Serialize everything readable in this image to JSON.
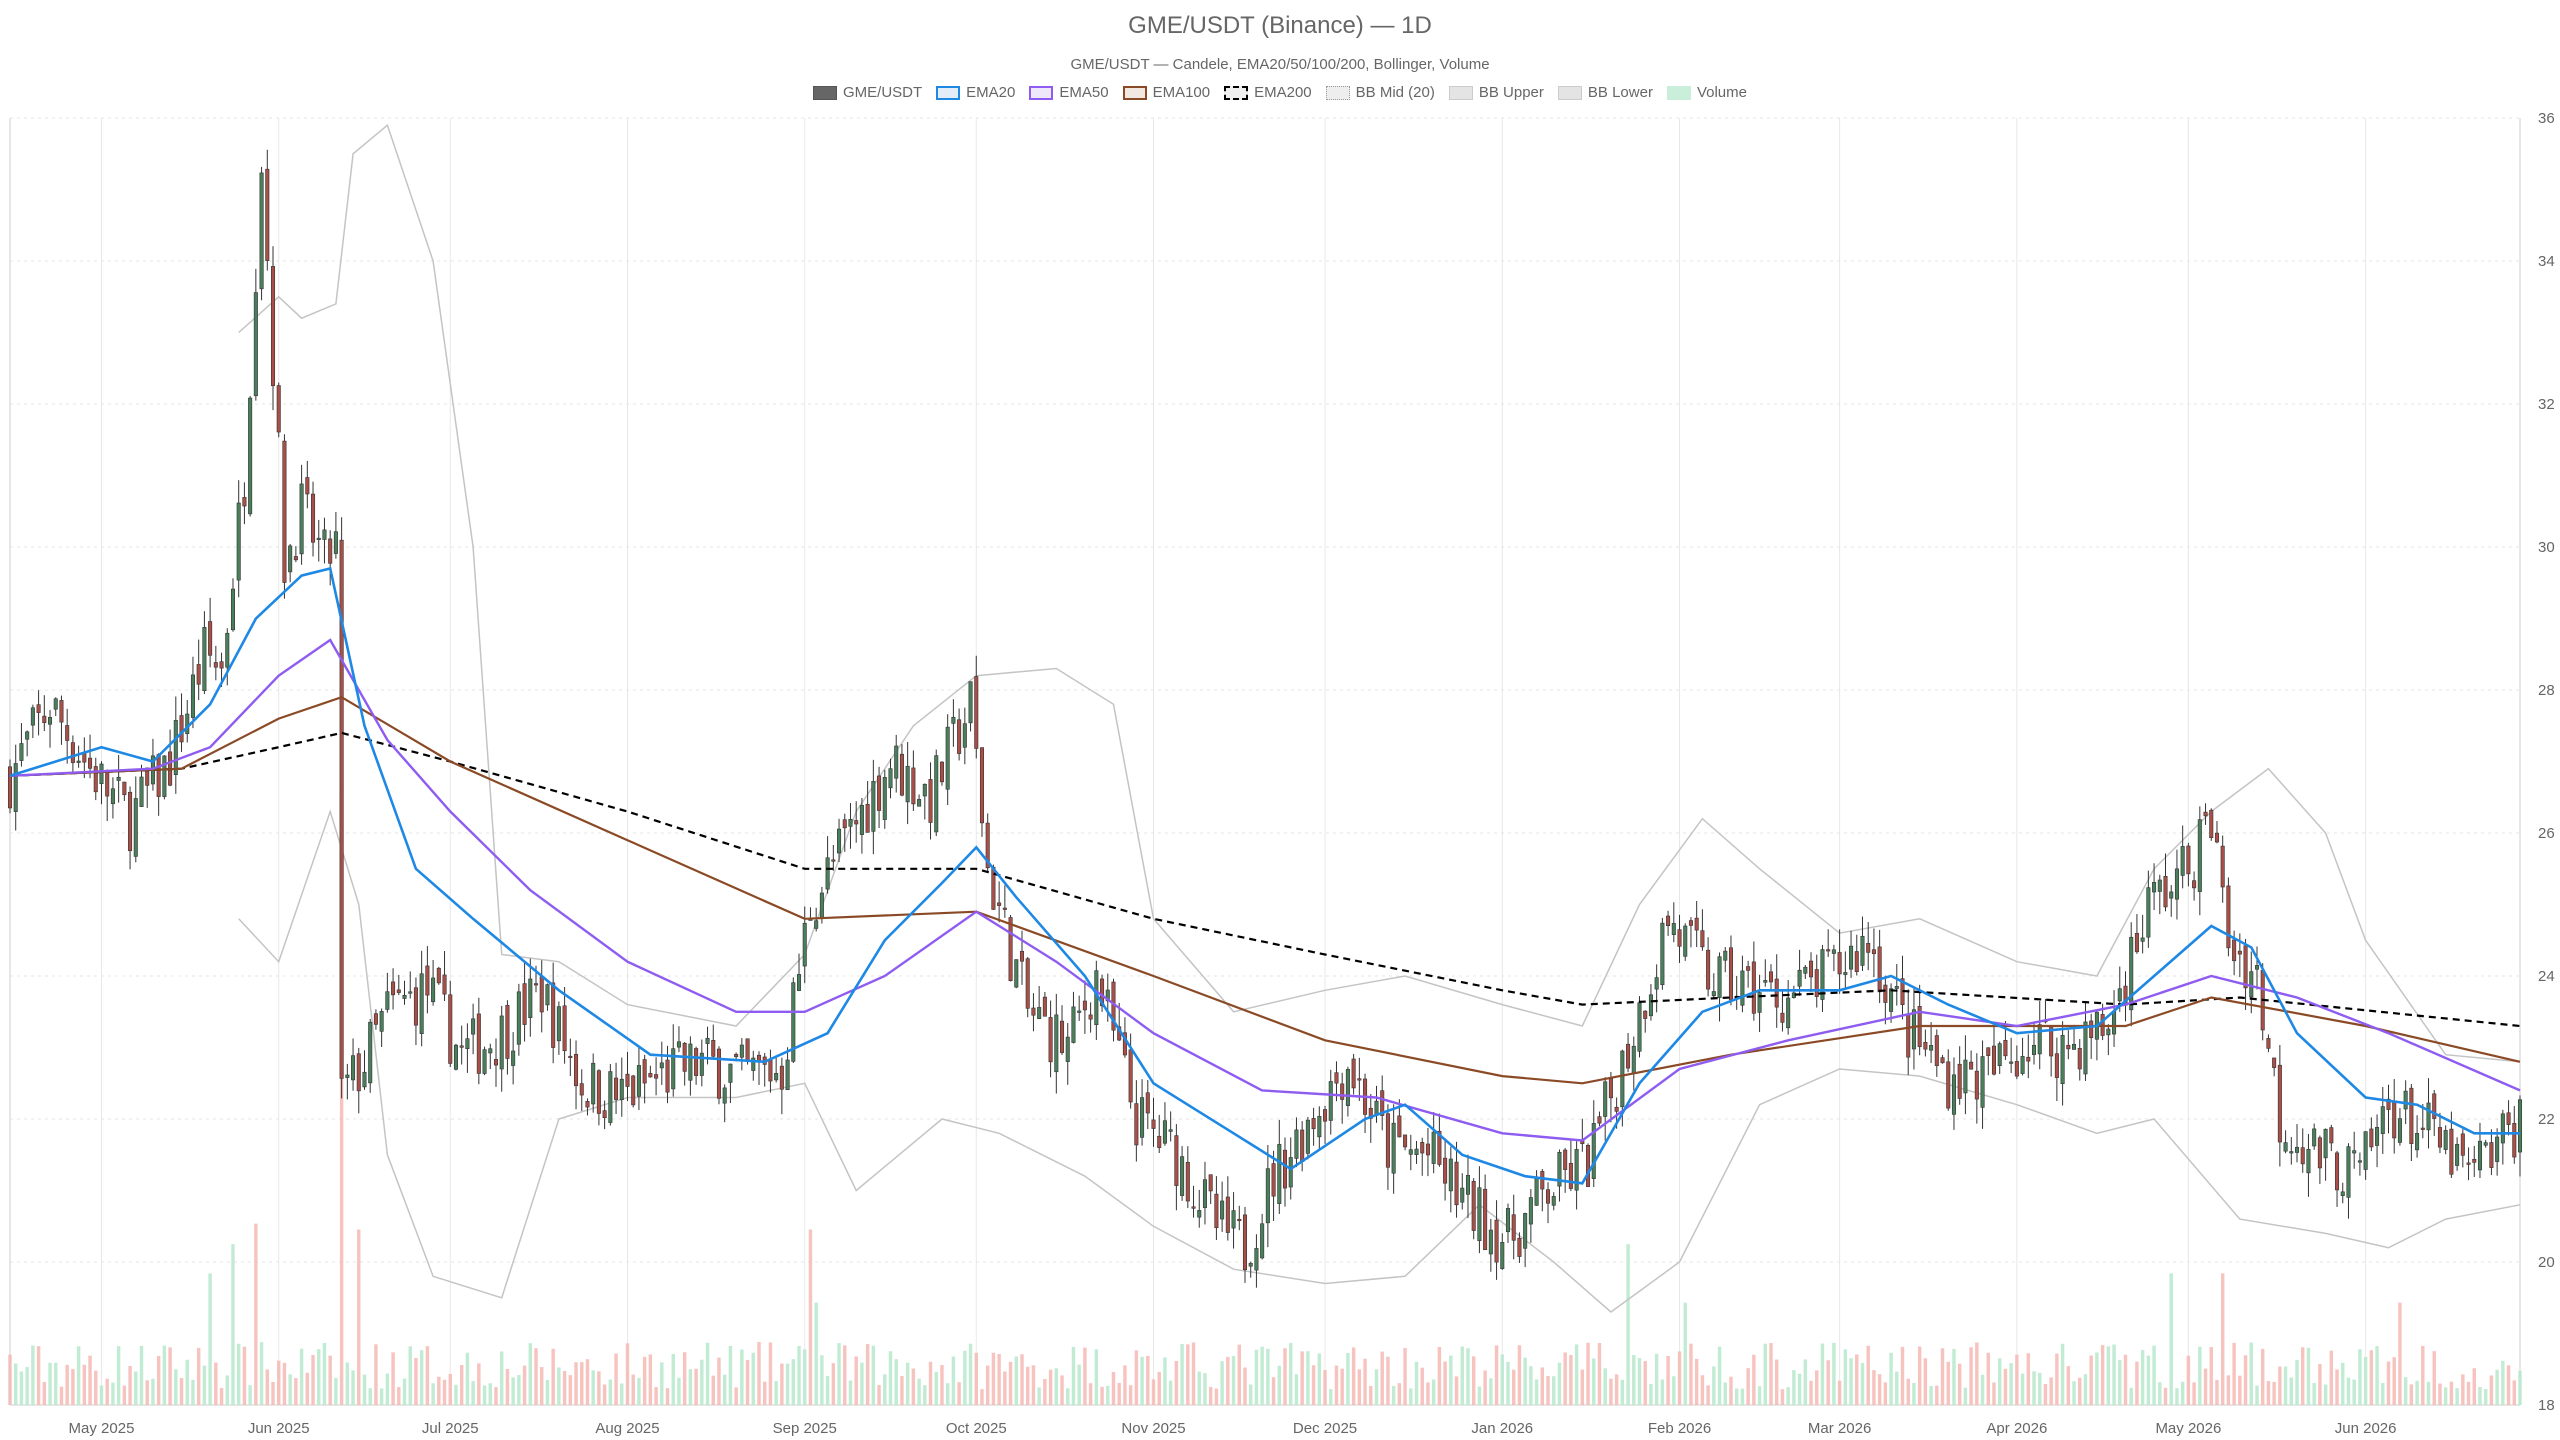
{
  "chart_data": {
    "type": "candlestick",
    "title": "GME/USDT (Binance) — 1D",
    "subtitle": "GME/USDT — Candele, EMA20/50/100/200, Bollinger, Volume",
    "legend": [
      {
        "key": "candles",
        "label": "GME/USDT",
        "color": "#666666",
        "style": "solid"
      },
      {
        "key": "ema20",
        "label": "EMA20",
        "color": "#1e88e5",
        "style": "solid"
      },
      {
        "key": "ema50",
        "label": "EMA50",
        "color": "#8e5cf0",
        "style": "solid"
      },
      {
        "key": "ema100",
        "label": "EMA100",
        "color": "#8b4a26",
        "style": "solid"
      },
      {
        "key": "ema200",
        "label": "EMA200",
        "color": "#000000",
        "style": "dashed"
      },
      {
        "key": "bbmid",
        "label": "BB Mid (20)",
        "color": "#999999",
        "style": "dotted"
      },
      {
        "key": "bbupper",
        "label": "BB Upper",
        "color": "#bbbbbb",
        "style": "solid"
      },
      {
        "key": "bblower",
        "label": "BB Lower",
        "color": "#bbbbbb",
        "style": "solid"
      },
      {
        "key": "volume",
        "label": "Volume",
        "color": "#b7e8cc",
        "style": "solid"
      }
    ],
    "x_ticks": [
      "May 2025",
      "Jun 2025",
      "Jul 2025",
      "Aug 2025",
      "Sep 2025",
      "Oct 2025",
      "Nov 2025",
      "Dec 2025",
      "Jan 2026",
      "Feb 2026",
      "Mar 2026",
      "Apr 2026",
      "May 2026",
      "Jun 2026"
    ],
    "x_range": [
      "2025-04-15",
      "2026-06-28"
    ],
    "y_ticks": [
      18,
      20,
      22,
      24,
      26,
      28,
      30,
      32,
      34,
      36
    ],
    "ylim": [
      18,
      36
    ],
    "colors": {
      "up": "#4a7f5b",
      "down": "#a94f47",
      "vol_up": "#b7e8cc",
      "vol_down": "#f4b8b4",
      "grid": "#e6e6e6"
    },
    "close_path": [
      [
        "2025-04-15",
        26.8
      ],
      [
        "2025-04-22",
        27.8
      ],
      [
        "2025-04-29",
        26.9
      ],
      [
        "2025-05-06",
        26.2
      ],
      [
        "2025-05-13",
        27.0
      ],
      [
        "2025-05-19",
        28.5
      ],
      [
        "2025-05-22",
        28.3
      ],
      [
        "2025-05-26",
        31.0
      ],
      [
        "2025-05-29",
        35.5
      ],
      [
        "2025-06-02",
        29.8
      ],
      [
        "2025-06-05",
        30.5
      ],
      [
        "2025-06-09",
        29.8
      ],
      [
        "2025-06-11",
        30.0
      ],
      [
        "2025-06-12",
        22.3
      ],
      [
        "2025-06-16",
        22.8
      ],
      [
        "2025-06-20",
        23.5
      ],
      [
        "2025-06-27",
        23.8
      ],
      [
        "2025-07-03",
        22.9
      ],
      [
        "2025-07-10",
        23.2
      ],
      [
        "2025-07-17",
        23.8
      ],
      [
        "2025-07-24",
        22.5
      ],
      [
        "2025-07-31",
        22.3
      ],
      [
        "2025-08-07",
        22.6
      ],
      [
        "2025-08-14",
        22.8
      ],
      [
        "2025-08-21",
        22.6
      ],
      [
        "2025-08-28",
        22.7
      ],
      [
        "2025-09-02",
        25.0
      ],
      [
        "2025-09-09",
        26.0
      ],
      [
        "2025-09-16",
        27.0
      ],
      [
        "2025-09-23",
        26.5
      ],
      [
        "2025-09-30",
        27.8
      ],
      [
        "2025-10-03",
        25.5
      ],
      [
        "2025-10-10",
        23.5
      ],
      [
        "2025-10-17",
        23.0
      ],
      [
        "2025-10-22",
        24.0
      ],
      [
        "2025-10-29",
        22.0
      ],
      [
        "2025-11-05",
        21.5
      ],
      [
        "2025-11-12",
        20.5
      ],
      [
        "2025-11-17",
        20.2
      ],
      [
        "2025-11-22",
        21.2
      ],
      [
        "2025-11-30",
        22.2
      ],
      [
        "2025-12-05",
        22.8
      ],
      [
        "2025-12-12",
        21.6
      ],
      [
        "2025-12-19",
        21.5
      ],
      [
        "2025-12-26",
        20.8
      ],
      [
        "2026-01-02",
        20.3
      ],
      [
        "2026-01-09",
        21.0
      ],
      [
        "2026-01-16",
        21.4
      ],
      [
        "2026-01-23",
        23.0
      ],
      [
        "2026-01-30",
        24.8
      ],
      [
        "2026-02-06",
        24.0
      ],
      [
        "2026-02-13",
        23.8
      ],
      [
        "2026-02-20",
        23.7
      ],
      [
        "2026-02-27",
        24.0
      ],
      [
        "2026-03-06",
        24.5
      ],
      [
        "2026-03-13",
        23.2
      ],
      [
        "2026-03-20",
        22.6
      ],
      [
        "2026-03-27",
        22.6
      ],
      [
        "2026-04-03",
        23.1
      ],
      [
        "2026-04-10",
        23.0
      ],
      [
        "2026-04-17",
        23.3
      ],
      [
        "2026-04-24",
        25.0
      ],
      [
        "2026-05-01",
        25.5
      ],
      [
        "2026-05-05",
        26.2
      ],
      [
        "2026-05-08",
        24.5
      ],
      [
        "2026-05-13",
        24.0
      ],
      [
        "2026-05-17",
        22.0
      ],
      [
        "2026-05-24",
        21.5
      ],
      [
        "2026-05-31",
        21.2
      ],
      [
        "2026-06-05",
        22.2
      ],
      [
        "2026-06-12",
        21.8
      ],
      [
        "2026-06-19",
        21.2
      ],
      [
        "2026-06-24",
        21.6
      ],
      [
        "2026-06-28",
        22.0
      ]
    ],
    "ema20": [
      [
        "2025-04-15",
        26.8
      ],
      [
        "2025-05-01",
        27.2
      ],
      [
        "2025-05-10",
        27.0
      ],
      [
        "2025-05-20",
        27.8
      ],
      [
        "2025-05-28",
        29.0
      ],
      [
        "2025-06-05",
        29.6
      ],
      [
        "2025-06-10",
        29.7
      ],
      [
        "2025-06-16",
        27.5
      ],
      [
        "2025-06-25",
        25.5
      ],
      [
        "2025-07-05",
        24.8
      ],
      [
        "2025-07-20",
        23.8
      ],
      [
        "2025-08-05",
        22.9
      ],
      [
        "2025-08-25",
        22.8
      ],
      [
        "2025-09-05",
        23.2
      ],
      [
        "2025-09-15",
        24.5
      ],
      [
        "2025-09-25",
        25.3
      ],
      [
        "2025-10-01",
        25.8
      ],
      [
        "2025-10-08",
        25.1
      ],
      [
        "2025-10-20",
        24.0
      ],
      [
        "2025-11-01",
        22.5
      ],
      [
        "2025-11-15",
        21.8
      ],
      [
        "2025-11-25",
        21.3
      ],
      [
        "2025-12-08",
        22.0
      ],
      [
        "2025-12-15",
        22.2
      ],
      [
        "2025-12-25",
        21.5
      ],
      [
        "2026-01-05",
        21.2
      ],
      [
        "2026-01-15",
        21.1
      ],
      [
        "2026-01-25",
        22.5
      ],
      [
        "2026-02-05",
        23.5
      ],
      [
        "2026-02-15",
        23.8
      ],
      [
        "2026-03-01",
        23.8
      ],
      [
        "2026-03-10",
        24.0
      ],
      [
        "2026-03-20",
        23.6
      ],
      [
        "2026-04-01",
        23.2
      ],
      [
        "2026-04-15",
        23.3
      ],
      [
        "2026-04-25",
        24.0
      ],
      [
        "2026-05-05",
        24.7
      ],
      [
        "2026-05-12",
        24.4
      ],
      [
        "2026-05-20",
        23.2
      ],
      [
        "2026-06-01",
        22.3
      ],
      [
        "2026-06-10",
        22.2
      ],
      [
        "2026-06-20",
        21.8
      ],
      [
        "2026-06-28",
        21.8
      ]
    ],
    "ema50": [
      [
        "2025-04-15",
        26.8
      ],
      [
        "2025-05-10",
        26.9
      ],
      [
        "2025-05-20",
        27.2
      ],
      [
        "2025-06-01",
        28.2
      ],
      [
        "2025-06-10",
        28.7
      ],
      [
        "2025-06-20",
        27.3
      ],
      [
        "2025-07-01",
        26.3
      ],
      [
        "2025-07-15",
        25.2
      ],
      [
        "2025-08-01",
        24.2
      ],
      [
        "2025-08-20",
        23.5
      ],
      [
        "2025-09-01",
        23.5
      ],
      [
        "2025-09-15",
        24.0
      ],
      [
        "2025-10-01",
        24.9
      ],
      [
        "2025-10-15",
        24.2
      ],
      [
        "2025-11-01",
        23.2
      ],
      [
        "2025-11-20",
        22.4
      ],
      [
        "2025-12-10",
        22.3
      ],
      [
        "2026-01-01",
        21.8
      ],
      [
        "2026-01-15",
        21.7
      ],
      [
        "2026-02-01",
        22.7
      ],
      [
        "2026-02-20",
        23.1
      ],
      [
        "2026-03-15",
        23.5
      ],
      [
        "2026-04-01",
        23.3
      ],
      [
        "2026-04-20",
        23.6
      ],
      [
        "2026-05-05",
        24.0
      ],
      [
        "2026-05-20",
        23.7
      ],
      [
        "2026-06-05",
        23.2
      ],
      [
        "2026-06-28",
        22.4
      ]
    ],
    "ema100": [
      [
        "2025-04-15",
        26.8
      ],
      [
        "2025-05-15",
        26.9
      ],
      [
        "2025-06-01",
        27.6
      ],
      [
        "2025-06-12",
        27.9
      ],
      [
        "2025-07-01",
        27.0
      ],
      [
        "2025-08-01",
        25.9
      ],
      [
        "2025-09-01",
        24.8
      ],
      [
        "2025-10-01",
        24.9
      ],
      [
        "2025-11-01",
        24.0
      ],
      [
        "2025-12-01",
        23.1
      ],
      [
        "2026-01-01",
        22.6
      ],
      [
        "2026-01-15",
        22.5
      ],
      [
        "2026-02-10",
        22.9
      ],
      [
        "2026-03-15",
        23.3
      ],
      [
        "2026-04-20",
        23.3
      ],
      [
        "2026-05-05",
        23.7
      ],
      [
        "2026-06-01",
        23.3
      ],
      [
        "2026-06-28",
        22.8
      ]
    ],
    "ema200": [
      [
        "2025-04-15",
        26.8
      ],
      [
        "2025-05-15",
        26.9
      ],
      [
        "2025-06-01",
        27.2
      ],
      [
        "2025-06-12",
        27.4
      ],
      [
        "2025-07-01",
        27.0
      ],
      [
        "2025-08-01",
        26.3
      ],
      [
        "2025-09-01",
        25.5
      ],
      [
        "2025-10-01",
        25.5
      ],
      [
        "2025-11-01",
        24.8
      ],
      [
        "2025-12-01",
        24.3
      ],
      [
        "2026-01-01",
        23.8
      ],
      [
        "2026-01-15",
        23.6
      ],
      [
        "2026-02-10",
        23.7
      ],
      [
        "2026-03-10",
        23.8
      ],
      [
        "2026-04-20",
        23.6
      ],
      [
        "2026-05-10",
        23.7
      ],
      [
        "2026-06-28",
        23.3
      ]
    ],
    "bb_upper": [
      [
        "2025-05-25",
        33.0
      ],
      [
        "2025-06-01",
        33.5
      ],
      [
        "2025-06-05",
        33.2
      ],
      [
        "2025-06-11",
        33.4
      ],
      [
        "2025-06-14",
        35.5
      ],
      [
        "2025-06-20",
        35.9
      ],
      [
        "2025-06-28",
        34.0
      ],
      [
        "2025-07-05",
        30.0
      ],
      [
        "2025-07-10",
        24.3
      ],
      [
        "2025-07-20",
        24.2
      ],
      [
        "2025-08-01",
        23.6
      ],
      [
        "2025-08-20",
        23.3
      ],
      [
        "2025-09-01",
        24.3
      ],
      [
        "2025-09-10",
        26.3
      ],
      [
        "2025-09-20",
        27.5
      ],
      [
        "2025-10-01",
        28.2
      ],
      [
        "2025-10-15",
        28.3
      ],
      [
        "2025-10-25",
        27.8
      ],
      [
        "2025-11-01",
        24.8
      ],
      [
        "2025-11-15",
        23.5
      ],
      [
        "2025-12-01",
        23.8
      ],
      [
        "2025-12-15",
        24.0
      ],
      [
        "2026-01-01",
        23.6
      ],
      [
        "2026-01-15",
        23.3
      ],
      [
        "2026-01-25",
        25.0
      ],
      [
        "2026-02-05",
        26.2
      ],
      [
        "2026-02-15",
        25.5
      ],
      [
        "2026-03-01",
        24.6
      ],
      [
        "2026-03-15",
        24.8
      ],
      [
        "2026-04-01",
        24.2
      ],
      [
        "2026-04-15",
        24.0
      ],
      [
        "2026-04-25",
        25.5
      ],
      [
        "2026-05-05",
        26.3
      ],
      [
        "2026-05-15",
        26.9
      ],
      [
        "2026-05-25",
        26.0
      ],
      [
        "2026-06-01",
        24.5
      ],
      [
        "2026-06-15",
        22.9
      ],
      [
        "2026-06-28",
        22.8
      ]
    ],
    "bb_lower": [
      [
        "2025-05-25",
        24.8
      ],
      [
        "2025-06-01",
        24.2
      ],
      [
        "2025-06-10",
        26.3
      ],
      [
        "2025-06-15",
        25.0
      ],
      [
        "2025-06-20",
        21.5
      ],
      [
        "2025-06-28",
        19.8
      ],
      [
        "2025-07-10",
        19.5
      ],
      [
        "2025-07-20",
        22.0
      ],
      [
        "2025-08-01",
        22.3
      ],
      [
        "2025-08-20",
        22.3
      ],
      [
        "2025-09-01",
        22.5
      ],
      [
        "2025-09-10",
        21.0
      ],
      [
        "2025-09-25",
        22.0
      ],
      [
        "2025-10-05",
        21.8
      ],
      [
        "2025-10-20",
        21.2
      ],
      [
        "2025-11-01",
        20.5
      ],
      [
        "2025-11-15",
        19.9
      ],
      [
        "2025-12-01",
        19.7
      ],
      [
        "2025-12-15",
        19.8
      ],
      [
        "2025-12-28",
        20.8
      ],
      [
        "2026-01-10",
        20.0
      ],
      [
        "2026-01-20",
        19.3
      ],
      [
        "2026-02-01",
        20.0
      ],
      [
        "2026-02-15",
        22.2
      ],
      [
        "2026-03-01",
        22.7
      ],
      [
        "2026-03-15",
        22.6
      ],
      [
        "2026-04-01",
        22.2
      ],
      [
        "2026-04-15",
        21.8
      ],
      [
        "2026-04-25",
        22.0
      ],
      [
        "2026-05-10",
        20.6
      ],
      [
        "2026-05-25",
        20.4
      ],
      [
        "2026-06-05",
        20.2
      ],
      [
        "2026-06-15",
        20.6
      ],
      [
        "2026-06-28",
        20.8
      ]
    ],
    "volume_spikes": [
      [
        "2025-05-20",
        0.45,
        "up"
      ],
      [
        "2025-05-24",
        0.55,
        "up"
      ],
      [
        "2025-05-28",
        0.62,
        "down"
      ],
      [
        "2025-06-12",
        2.1,
        "down"
      ],
      [
        "2025-06-15",
        0.6,
        "down"
      ],
      [
        "2025-09-02",
        0.6,
        "down"
      ],
      [
        "2025-09-03",
        0.35,
        "up"
      ],
      [
        "2026-01-23",
        0.55,
        "up"
      ],
      [
        "2026-02-02",
        0.35,
        "up"
      ],
      [
        "2026-04-28",
        0.45,
        "up"
      ],
      [
        "2026-05-07",
        0.45,
        "down"
      ],
      [
        "2026-06-07",
        0.35,
        "down"
      ]
    ],
    "volume_base": 0.18
  }
}
